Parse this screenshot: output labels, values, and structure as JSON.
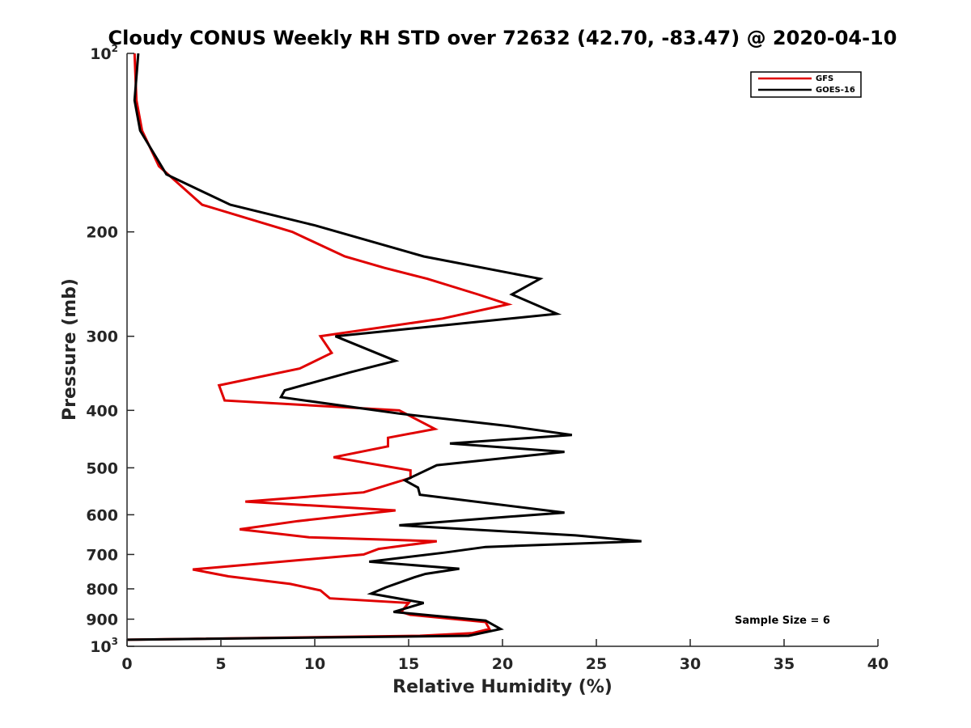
{
  "chart_data": {
    "type": "line",
    "title": "Cloudy CONUS Weekly RH STD over 72632 (42.70, -83.47) @ 2020-04-10",
    "xlabel": "Relative Humidity (%)",
    "ylabel": "Pressure (mb)",
    "xlim": [
      0,
      40
    ],
    "ylim": [
      100,
      1000
    ],
    "y_scale": "log",
    "y_reversed": true,
    "x_ticks": [
      "0",
      "5",
      "10",
      "15",
      "20",
      "25",
      "30",
      "35",
      "40"
    ],
    "x_tick_values": [
      0,
      5,
      10,
      15,
      20,
      25,
      30,
      35,
      40
    ],
    "y_ticks": [
      {
        "value": 100,
        "base": "10",
        "exp": "2"
      },
      {
        "value": 200,
        "base": "200",
        "exp": ""
      },
      {
        "value": 300,
        "base": "300",
        "exp": ""
      },
      {
        "value": 400,
        "base": "400",
        "exp": ""
      },
      {
        "value": 500,
        "base": "500",
        "exp": ""
      },
      {
        "value": 600,
        "base": "600",
        "exp": ""
      },
      {
        "value": 700,
        "base": "700",
        "exp": ""
      },
      {
        "value": 800,
        "base": "800",
        "exp": ""
      },
      {
        "value": 900,
        "base": "900",
        "exp": ""
      },
      {
        "value": 1000,
        "base": "10",
        "exp": "3"
      }
    ],
    "grid": false,
    "legend_position": "top-right",
    "annotation": "Sample Size = 6",
    "series": [
      {
        "name": "GFS",
        "color": "#e00000",
        "points": [
          [
            0.4,
            100
          ],
          [
            0.5,
            120
          ],
          [
            0.8,
            135
          ],
          [
            1.7,
            155
          ],
          [
            4.0,
            180
          ],
          [
            8.8,
            200
          ],
          [
            11.6,
            220
          ],
          [
            13.7,
            230
          ],
          [
            16.0,
            240
          ],
          [
            18.7,
            255
          ],
          [
            20.3,
            265
          ],
          [
            16.8,
            280
          ],
          [
            10.3,
            300
          ],
          [
            10.9,
            320
          ],
          [
            9.2,
            340
          ],
          [
            4.9,
            363
          ],
          [
            5.2,
            385
          ],
          [
            14.5,
            400
          ],
          [
            16.4,
            430
          ],
          [
            13.9,
            445
          ],
          [
            13.9,
            460
          ],
          [
            11.0,
            480
          ],
          [
            15.1,
            505
          ],
          [
            15.1,
            520
          ],
          [
            12.6,
            550
          ],
          [
            6.3,
            570
          ],
          [
            14.3,
            590
          ],
          [
            9.1,
            615
          ],
          [
            6.0,
            635
          ],
          [
            9.7,
            655
          ],
          [
            16.5,
            665
          ],
          [
            13.4,
            685
          ],
          [
            12.6,
            700
          ],
          [
            3.5,
            742
          ],
          [
            5.4,
            762
          ],
          [
            8.7,
            785
          ],
          [
            10.3,
            805
          ],
          [
            10.8,
            830
          ],
          [
            15.0,
            845
          ],
          [
            14.6,
            875
          ],
          [
            15.1,
            885
          ],
          [
            19.1,
            910
          ],
          [
            19.3,
            935
          ],
          [
            18.4,
            950
          ],
          [
            15.6,
            960
          ],
          [
            0.0,
            975
          ]
        ]
      },
      {
        "name": "GOES-16",
        "color": "#000000",
        "points": [
          [
            0.6,
            100
          ],
          [
            0.4,
            120
          ],
          [
            0.7,
            135
          ],
          [
            2.1,
            160
          ],
          [
            5.5,
            180
          ],
          [
            10.0,
            195
          ],
          [
            15.8,
            220
          ],
          [
            22.0,
            240
          ],
          [
            20.5,
            255
          ],
          [
            22.9,
            275
          ],
          [
            11.1,
            300
          ],
          [
            14.3,
            330
          ],
          [
            11.9,
            345
          ],
          [
            8.4,
            370
          ],
          [
            8.2,
            380
          ],
          [
            14.5,
            405
          ],
          [
            20.3,
            425
          ],
          [
            23.7,
            440
          ],
          [
            17.2,
            455
          ],
          [
            23.3,
            470
          ],
          [
            16.5,
            495
          ],
          [
            14.8,
            525
          ],
          [
            15.5,
            540
          ],
          [
            15.6,
            555
          ],
          [
            23.3,
            595
          ],
          [
            19.3,
            608
          ],
          [
            14.5,
            625
          ],
          [
            23.9,
            650
          ],
          [
            27.4,
            665
          ],
          [
            19.1,
            680
          ],
          [
            16.9,
            695
          ],
          [
            12.9,
            720
          ],
          [
            17.7,
            740
          ],
          [
            15.9,
            755
          ],
          [
            15.3,
            765
          ],
          [
            13.8,
            795
          ],
          [
            13.0,
            815
          ],
          [
            15.8,
            845
          ],
          [
            14.2,
            875
          ],
          [
            19.1,
            905
          ],
          [
            19.9,
            935
          ],
          [
            18.2,
            960
          ],
          [
            0.0,
            975
          ]
        ]
      }
    ]
  }
}
